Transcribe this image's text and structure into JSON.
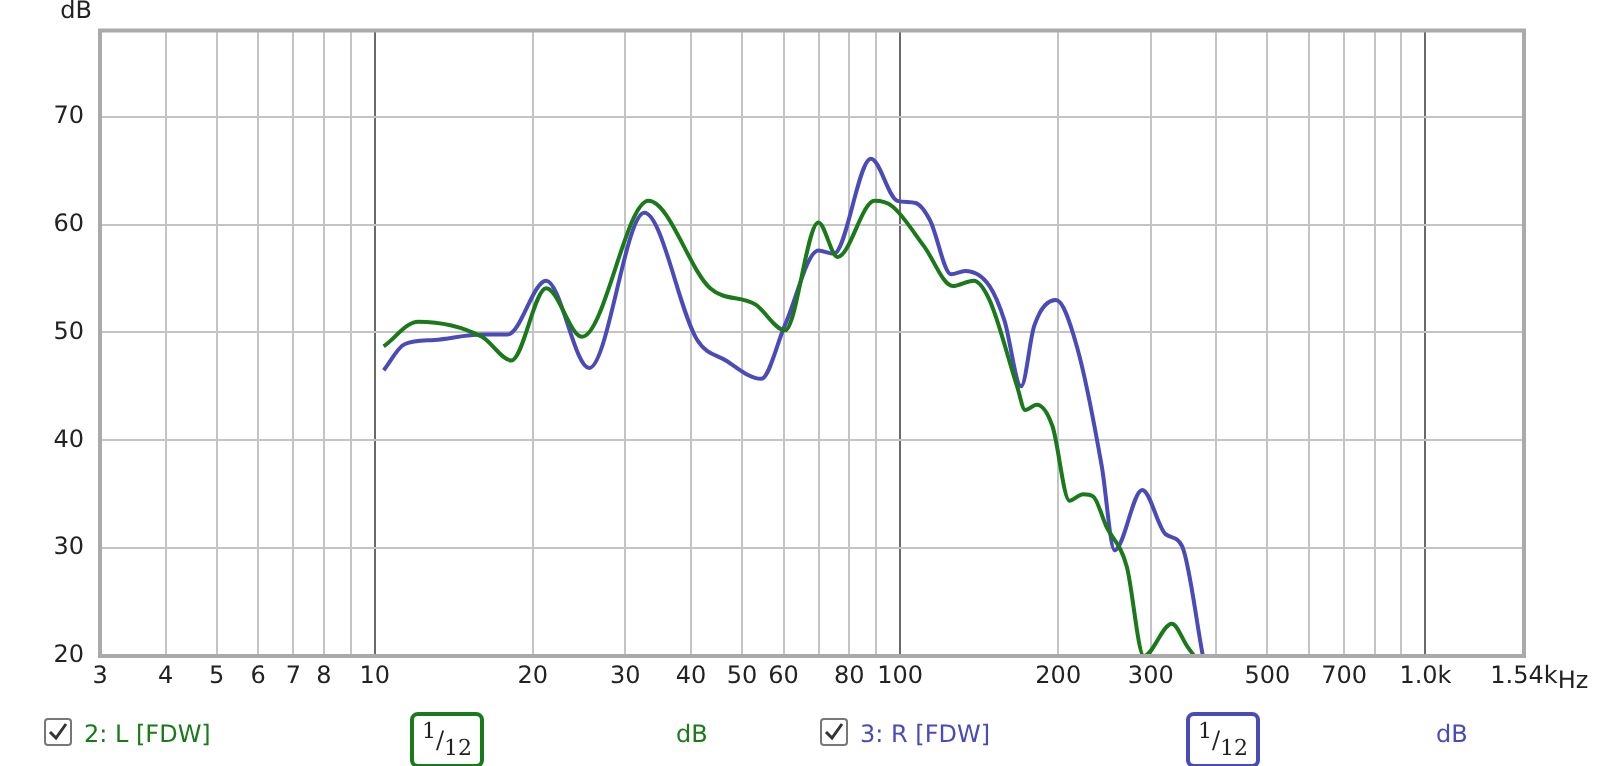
{
  "chart_data": {
    "type": "line",
    "ylabel": "dB",
    "xlim": [
      3,
      1540
    ],
    "ylim": [
      20,
      78
    ],
    "xticks": [
      3,
      4,
      5,
      6,
      7,
      8,
      {
        "value": 9,
        "label": null
      },
      10,
      20,
      30,
      40,
      50,
      60,
      {
        "value": 70,
        "label": null
      },
      80,
      {
        "value": 90,
        "label": null
      },
      100,
      200,
      300,
      {
        "value": 400,
        "label": null
      },
      500,
      {
        "value": 600,
        "label": null
      },
      700,
      {
        "value": 800,
        "label": null
      },
      {
        "value": 900,
        "label": null
      },
      {
        "value": 1000,
        "label": "1.0k"
      },
      {
        "value": 1540,
        "label": "1.54k"
      }
    ],
    "xlabel": "Hz",
    "log": "x",
    "yticks": [
      20,
      30,
      40,
      50,
      60,
      70
    ],
    "grid": true,
    "legend": "bottom",
    "marker": "none",
    "line_style": "solid",
    "annotations": [
      "$^{1}$/$_{12}$",
      "dB",
      "$^{1}$/$_{12}$",
      "dB"
    ],
    "series": [
      {
        "name": "2: L [FDW]",
        "color": "#1a7a1a",
        "x": [
          10.4,
          12.1,
          16.0,
          18.2,
          21.2,
          24.8,
          33.2,
          43.5,
          53,
          60.4,
          69.9,
          76,
          89.4,
          96.6,
          111,
          126,
          138,
          148,
          167,
          173,
          182,
          195,
          210,
          223,
          233,
          247,
          270,
          291,
          329,
          352,
          363
        ],
        "values": [
          48.7,
          51,
          49.6,
          47.4,
          54.1,
          49.6,
          62.2,
          54.1,
          52.6,
          50.2,
          60.2,
          57,
          62.2,
          61.7,
          58,
          54.3,
          54.8,
          53,
          45,
          42.8,
          43.3,
          41.3,
          34.4,
          35,
          34.8,
          32,
          28.3,
          20,
          23,
          20.9,
          20
        ]
      },
      {
        "name": "3: R [FDW]",
        "color": "#4a4ab8",
        "x": [
          10.4,
          11.4,
          13.0,
          16.0,
          17.9,
          21.2,
          25.6,
          32.6,
          41.1,
          46.6,
          54.4,
          60.4,
          69.9,
          74.8,
          88,
          98.8,
          107,
          114,
          125,
          133,
          148,
          158,
          170,
          180,
          198,
          217,
          242,
          256,
          289,
          320,
          344,
          377
        ],
        "values": [
          46.5,
          48.9,
          49.3,
          49.8,
          49.8,
          54.8,
          46.7,
          61.1,
          49.3,
          47.4,
          45.7,
          50.7,
          57.6,
          57.3,
          66.1,
          62.2,
          62,
          60.4,
          55.4,
          55.7,
          54.3,
          51.1,
          45,
          50.6,
          53,
          48.7,
          37.6,
          29.8,
          35.4,
          31.3,
          30.2,
          20
        ]
      }
    ]
  }
}
